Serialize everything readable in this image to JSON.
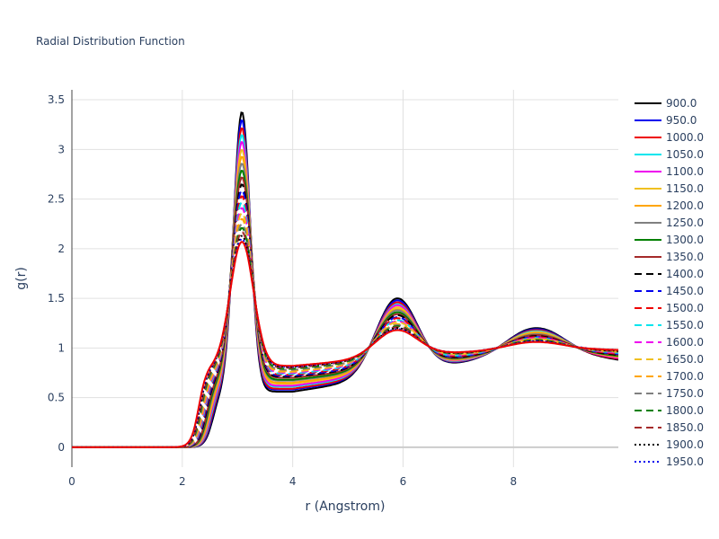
{
  "chart_data": {
    "type": "line",
    "title": "Radial Distribution Function",
    "xlabel": "r (Angstrom)",
    "ylabel": "g(r)",
    "xlim": [
      0,
      9.9
    ],
    "ylim": [
      -0.2,
      3.6
    ],
    "x_ticks": [
      0,
      2,
      4,
      6,
      8
    ],
    "y_ticks": [
      0,
      0.5,
      1,
      1.5,
      2,
      2.5,
      3,
      3.5
    ],
    "x_tick_labels": [
      "0",
      "2",
      "4",
      "6",
      "8"
    ],
    "y_tick_labels": [
      "0",
      "0.5",
      "1",
      "1.5",
      "2",
      "2.5",
      "3",
      "3.5"
    ],
    "grid": true,
    "legend_position": "right",
    "series": [
      {
        "name": "900.0",
        "color": "#000000",
        "dash": "solid",
        "peak1": 3.38,
        "min1": 0.56,
        "peak2": 1.5,
        "min2": 0.73,
        "peak3": 1.2,
        "tail": 0.88
      },
      {
        "name": "950.0",
        "color": "#0000ee",
        "dash": "solid",
        "peak1": 3.3,
        "min1": 0.58,
        "peak2": 1.48,
        "min2": 0.74,
        "peak3": 1.19,
        "tail": 0.89
      },
      {
        "name": "1000.0",
        "color": "#ee0000",
        "dash": "solid",
        "peak1": 3.22,
        "min1": 0.59,
        "peak2": 1.46,
        "min2": 0.75,
        "peak3": 1.18,
        "tail": 0.89
      },
      {
        "name": "1050.0",
        "color": "#00e5ee",
        "dash": "solid",
        "peak1": 3.15,
        "min1": 0.61,
        "peak2": 1.44,
        "min2": 0.76,
        "peak3": 1.17,
        "tail": 0.9
      },
      {
        "name": "1100.0",
        "color": "#ee00ee",
        "dash": "solid",
        "peak1": 3.08,
        "min1": 0.62,
        "peak2": 1.43,
        "min2": 0.77,
        "peak3": 1.16,
        "tail": 0.9
      },
      {
        "name": "1150.0",
        "color": "#f0c020",
        "dash": "solid",
        "peak1": 3.0,
        "min1": 0.64,
        "peak2": 1.41,
        "min2": 0.78,
        "peak3": 1.16,
        "tail": 0.91
      },
      {
        "name": "1200.0",
        "color": "#ffa500",
        "dash": "solid",
        "peak1": 2.93,
        "min1": 0.65,
        "peak2": 1.39,
        "min2": 0.79,
        "peak3": 1.15,
        "tail": 0.91
      },
      {
        "name": "1250.0",
        "color": "#808080",
        "dash": "solid",
        "peak1": 2.86,
        "min1": 0.67,
        "peak2": 1.38,
        "min2": 0.8,
        "peak3": 1.14,
        "tail": 0.92
      },
      {
        "name": "1300.0",
        "color": "#008000",
        "dash": "solid",
        "peak1": 2.79,
        "min1": 0.68,
        "peak2": 1.36,
        "min2": 0.81,
        "peak3": 1.13,
        "tail": 0.92
      },
      {
        "name": "1350.0",
        "color": "#a52a2a",
        "dash": "solid",
        "peak1": 2.72,
        "min1": 0.7,
        "peak2": 1.34,
        "min2": 0.82,
        "peak3": 1.13,
        "tail": 0.93
      },
      {
        "name": "1400.0",
        "color": "#000000",
        "dash": "dash",
        "peak1": 2.65,
        "min1": 0.71,
        "peak2": 1.33,
        "min2": 0.83,
        "peak3": 1.12,
        "tail": 0.93
      },
      {
        "name": "1450.0",
        "color": "#0000ee",
        "dash": "dash",
        "peak1": 2.59,
        "min1": 0.72,
        "peak2": 1.31,
        "min2": 0.84,
        "peak3": 1.11,
        "tail": 0.94
      },
      {
        "name": "1500.0",
        "color": "#ee0000",
        "dash": "dash",
        "peak1": 2.53,
        "min1": 0.73,
        "peak2": 1.3,
        "min2": 0.85,
        "peak3": 1.11,
        "tail": 0.94
      },
      {
        "name": "1550.0",
        "color": "#00e5ee",
        "dash": "dash",
        "peak1": 2.47,
        "min1": 0.74,
        "peak2": 1.28,
        "min2": 0.86,
        "peak3": 1.1,
        "tail": 0.95
      },
      {
        "name": "1600.0",
        "color": "#ee00ee",
        "dash": "dash",
        "peak1": 2.41,
        "min1": 0.75,
        "peak2": 1.27,
        "min2": 0.87,
        "peak3": 1.1,
        "tail": 0.95
      },
      {
        "name": "1650.0",
        "color": "#f0c020",
        "dash": "dash",
        "peak1": 2.36,
        "min1": 0.76,
        "peak2": 1.26,
        "min2": 0.88,
        "peak3": 1.09,
        "tail": 0.96
      },
      {
        "name": "1700.0",
        "color": "#ffa500",
        "dash": "dash",
        "peak1": 2.3,
        "min1": 0.77,
        "peak2": 1.24,
        "min2": 0.89,
        "peak3": 1.09,
        "tail": 0.96
      },
      {
        "name": "1750.0",
        "color": "#808080",
        "dash": "dash",
        "peak1": 2.25,
        "min1": 0.78,
        "peak2": 1.23,
        "min2": 0.89,
        "peak3": 1.08,
        "tail": 0.96
      },
      {
        "name": "1800.0",
        "color": "#008000",
        "dash": "dash",
        "peak1": 2.21,
        "min1": 0.79,
        "peak2": 1.22,
        "min2": 0.9,
        "peak3": 1.08,
        "tail": 0.97
      },
      {
        "name": "1850.0",
        "color": "#a52a2a",
        "dash": "dash",
        "peak1": 2.17,
        "min1": 0.8,
        "peak2": 1.21,
        "min2": 0.91,
        "peak3": 1.07,
        "tail": 0.97
      },
      {
        "name": "1900.0",
        "color": "#000000",
        "dash": "dot",
        "peak1": 2.13,
        "min1": 0.81,
        "peak2": 1.2,
        "min2": 0.91,
        "peak3": 1.07,
        "tail": 0.97
      },
      {
        "name": "1950.0",
        "color": "#0000ee",
        "dash": "dot",
        "peak1": 2.1,
        "min1": 0.81,
        "peak2": 1.19,
        "min2": 0.92,
        "peak3": 1.07,
        "tail": 0.98
      },
      {
        "name": "",
        "color": "#ee0000",
        "dash": "solid",
        "peak1": 2.07,
        "min1": 0.82,
        "peak2": 1.18,
        "min2": 0.92,
        "peak3": 1.06,
        "tail": 0.98
      }
    ]
  }
}
